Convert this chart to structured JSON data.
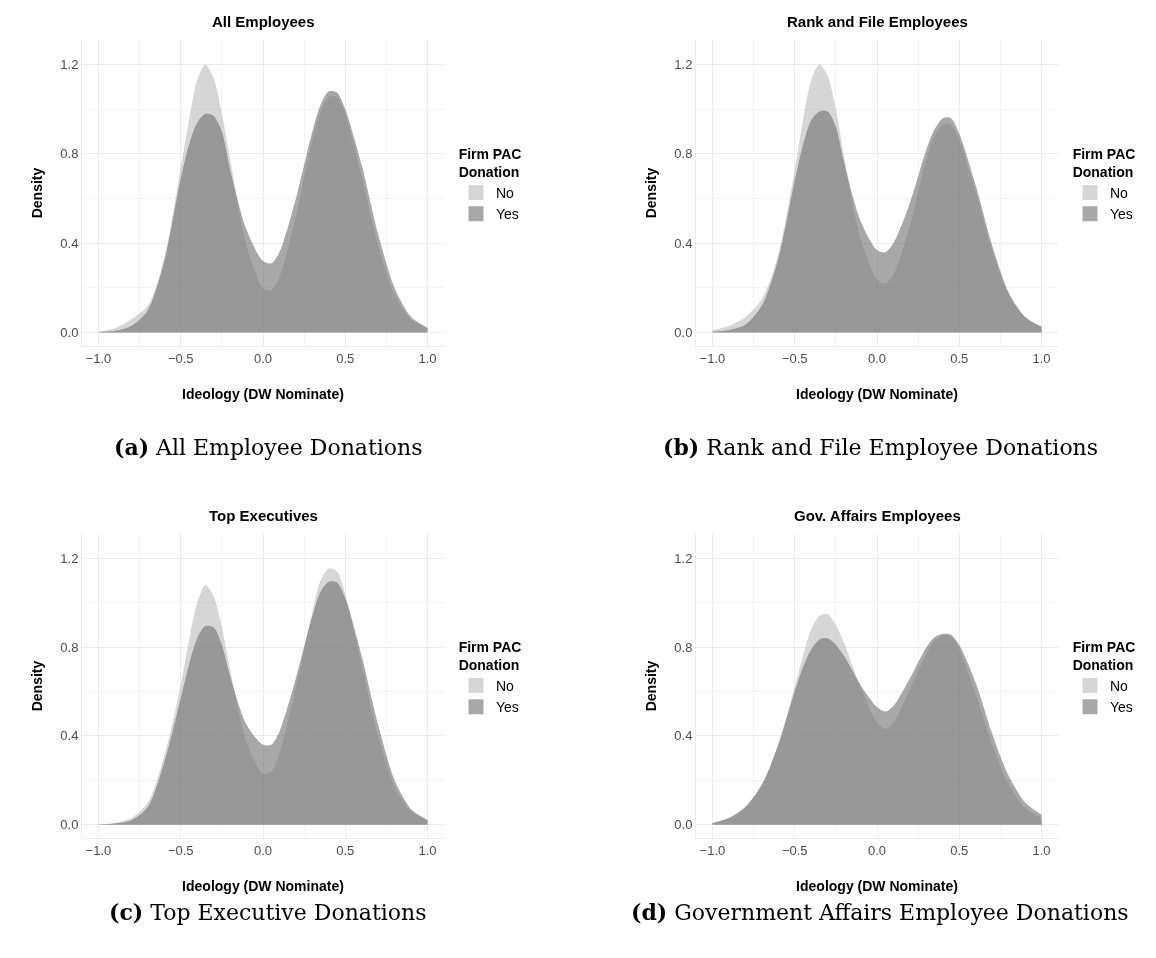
{
  "chart_data": [
    {
      "type": "area",
      "title": "All Employees",
      "xlabel": "Ideology (DW Nominate)",
      "ylabel": "Density",
      "legend_title": "Firm PAC Donation",
      "legend": "right",
      "grid": true,
      "xlim": [
        -1.1,
        1.1
      ],
      "ylim": [
        -0.06,
        1.31
      ],
      "xticks": [
        {
          "value": -1,
          "label": "−1.0"
        },
        {
          "value": -0.75,
          "label": null
        },
        {
          "value": -0.5,
          "label": "−0.5"
        },
        {
          "value": -0.25,
          "label": null
        },
        {
          "value": 0,
          "label": "0.0"
        },
        {
          "value": 0.25,
          "label": null
        },
        {
          "value": 0.5,
          "label": "0.5"
        },
        {
          "value": 0.75,
          "label": null
        },
        {
          "value": 1,
          "label": "1.0"
        }
      ],
      "yticks": [
        {
          "value": 0,
          "label": "0.0"
        },
        {
          "value": 0.2,
          "label": null
        },
        {
          "value": 0.4,
          "label": "0.4"
        },
        {
          "value": 0.6,
          "label": null
        },
        {
          "value": 0.8,
          "label": "0.8"
        },
        {
          "value": 1.0,
          "label": null
        },
        {
          "value": 1.2,
          "label": "1.2"
        }
      ],
      "x": [
        -1.0,
        -0.9,
        -0.8,
        -0.7,
        -0.6,
        -0.5,
        -0.45,
        -0.4,
        -0.35,
        -0.3,
        -0.25,
        -0.2,
        -0.1,
        0.0,
        0.05,
        0.1,
        0.2,
        0.3,
        0.35,
        0.4,
        0.45,
        0.5,
        0.6,
        0.7,
        0.8,
        0.9,
        1.0
      ],
      "series": [
        {
          "name": "No",
          "color": "#d6d6d6",
          "values": [
            0.005,
            0.02,
            0.06,
            0.12,
            0.33,
            0.74,
            0.95,
            1.13,
            1.2,
            1.14,
            0.98,
            0.78,
            0.39,
            0.2,
            0.19,
            0.25,
            0.52,
            0.86,
            0.99,
            1.055,
            1.055,
            0.98,
            0.7,
            0.39,
            0.17,
            0.06,
            0.02
          ]
        },
        {
          "name": "Yes",
          "color": "#a8a8a8",
          "values": [
            0.002,
            0.008,
            0.03,
            0.1,
            0.32,
            0.69,
            0.84,
            0.94,
            0.98,
            0.97,
            0.9,
            0.73,
            0.46,
            0.32,
            0.31,
            0.36,
            0.6,
            0.9,
            1.02,
            1.08,
            1.075,
            1.0,
            0.75,
            0.44,
            0.2,
            0.07,
            0.022
          ]
        }
      ],
      "annotations": [
        "(a) All Employee Donations"
      ]
    },
    {
      "type": "area",
      "title": "Rank and File Employees",
      "xlabel": "Ideology (DW Nominate)",
      "ylabel": "Density",
      "legend_title": "Firm PAC Donation",
      "legend": "right",
      "grid": true,
      "xlim": [
        -1.1,
        1.1
      ],
      "ylim": [
        -0.06,
        1.31
      ],
      "xticks": [
        {
          "value": -1,
          "label": "−1.0"
        },
        {
          "value": -0.75,
          "label": null
        },
        {
          "value": -0.5,
          "label": "−0.5"
        },
        {
          "value": -0.25,
          "label": null
        },
        {
          "value": 0,
          "label": "0.0"
        },
        {
          "value": 0.25,
          "label": null
        },
        {
          "value": 0.5,
          "label": "0.5"
        },
        {
          "value": 0.75,
          "label": null
        },
        {
          "value": 1,
          "label": "1.0"
        }
      ],
      "yticks": [
        {
          "value": 0,
          "label": "0.0"
        },
        {
          "value": 0.2,
          "label": null
        },
        {
          "value": 0.4,
          "label": "0.4"
        },
        {
          "value": 0.6,
          "label": null
        },
        {
          "value": 0.8,
          "label": "0.8"
        },
        {
          "value": 1.0,
          "label": null
        },
        {
          "value": 1.2,
          "label": "1.2"
        }
      ],
      "x": [
        -1.0,
        -0.9,
        -0.8,
        -0.7,
        -0.6,
        -0.5,
        -0.45,
        -0.4,
        -0.35,
        -0.3,
        -0.25,
        -0.2,
        -0.1,
        0.0,
        0.05,
        0.1,
        0.2,
        0.3,
        0.35,
        0.4,
        0.45,
        0.5,
        0.6,
        0.7,
        0.8,
        0.9,
        1.0
      ],
      "series": [
        {
          "name": "No",
          "color": "#d6d6d6",
          "values": [
            0.012,
            0.03,
            0.07,
            0.15,
            0.35,
            0.73,
            0.95,
            1.13,
            1.2,
            1.15,
            1.0,
            0.79,
            0.42,
            0.24,
            0.22,
            0.26,
            0.48,
            0.78,
            0.88,
            0.93,
            0.93,
            0.86,
            0.63,
            0.37,
            0.17,
            0.07,
            0.025
          ]
        },
        {
          "name": "Yes",
          "color": "#a8a8a8",
          "values": [
            0.004,
            0.012,
            0.035,
            0.12,
            0.33,
            0.68,
            0.84,
            0.95,
            0.99,
            0.99,
            0.92,
            0.76,
            0.5,
            0.37,
            0.36,
            0.4,
            0.58,
            0.82,
            0.91,
            0.96,
            0.96,
            0.89,
            0.66,
            0.39,
            0.18,
            0.07,
            0.027
          ]
        }
      ],
      "annotations": [
        "(b) Rank and File Employee Donations"
      ]
    },
    {
      "type": "area",
      "title": "Top Executives",
      "xlabel": "Ideology (DW Nominate)",
      "ylabel": "Density",
      "legend_title": "Firm PAC Donation",
      "legend": "right",
      "grid": true,
      "xlim": [
        -1.1,
        1.1
      ],
      "ylim": [
        -0.06,
        1.31
      ],
      "xticks": [
        {
          "value": -1,
          "label": "−1.0"
        },
        {
          "value": -0.75,
          "label": null
        },
        {
          "value": -0.5,
          "label": "−0.5"
        },
        {
          "value": -0.25,
          "label": null
        },
        {
          "value": 0,
          "label": "0.0"
        },
        {
          "value": 0.25,
          "label": null
        },
        {
          "value": 0.5,
          "label": "0.5"
        },
        {
          "value": 0.75,
          "label": null
        },
        {
          "value": 1,
          "label": "1.0"
        }
      ],
      "yticks": [
        {
          "value": 0,
          "label": "0.0"
        },
        {
          "value": 0.2,
          "label": null
        },
        {
          "value": 0.4,
          "label": "0.4"
        },
        {
          "value": 0.6,
          "label": null
        },
        {
          "value": 0.8,
          "label": "0.8"
        },
        {
          "value": 1.0,
          "label": null
        },
        {
          "value": 1.2,
          "label": "1.2"
        }
      ],
      "x": [
        -1.0,
        -0.9,
        -0.8,
        -0.7,
        -0.6,
        -0.5,
        -0.45,
        -0.4,
        -0.35,
        -0.3,
        -0.25,
        -0.2,
        -0.1,
        0.0,
        0.05,
        0.1,
        0.2,
        0.3,
        0.35,
        0.4,
        0.45,
        0.5,
        0.6,
        0.7,
        0.8,
        0.9,
        1.0
      ],
      "series": [
        {
          "name": "No",
          "color": "#d6d6d6",
          "values": [
            0.002,
            0.008,
            0.03,
            0.1,
            0.31,
            0.63,
            0.83,
            1.0,
            1.08,
            1.03,
            0.89,
            0.7,
            0.37,
            0.23,
            0.24,
            0.32,
            0.62,
            0.96,
            1.1,
            1.155,
            1.14,
            1.04,
            0.72,
            0.4,
            0.17,
            0.06,
            0.018
          ]
        },
        {
          "name": "Yes",
          "color": "#a8a8a8",
          "values": [
            0.001,
            0.005,
            0.02,
            0.08,
            0.28,
            0.57,
            0.72,
            0.84,
            0.895,
            0.89,
            0.81,
            0.67,
            0.45,
            0.36,
            0.36,
            0.42,
            0.66,
            0.94,
            1.05,
            1.095,
            1.09,
            1.02,
            0.76,
            0.45,
            0.2,
            0.07,
            0.022
          ]
        }
      ],
      "annotations": [
        "(c) Top Executive Donations"
      ]
    },
    {
      "type": "area",
      "title": "Gov. Affairs Employees",
      "xlabel": "Ideology (DW Nominate)",
      "ylabel": "Density",
      "legend_title": "Firm PAC Donation",
      "legend": "right",
      "grid": true,
      "xlim": [
        -1.1,
        1.1
      ],
      "ylim": [
        -0.06,
        1.31
      ],
      "xticks": [
        {
          "value": -1,
          "label": "−1.0"
        },
        {
          "value": -0.75,
          "label": null
        },
        {
          "value": -0.5,
          "label": "−0.5"
        },
        {
          "value": -0.25,
          "label": null
        },
        {
          "value": 0,
          "label": "0.0"
        },
        {
          "value": 0.25,
          "label": null
        },
        {
          "value": 0.5,
          "label": "0.5"
        },
        {
          "value": 0.75,
          "label": null
        },
        {
          "value": 1,
          "label": "1.0"
        }
      ],
      "yticks": [
        {
          "value": 0,
          "label": "0.0"
        },
        {
          "value": 0.2,
          "label": null
        },
        {
          "value": 0.4,
          "label": "0.4"
        },
        {
          "value": 0.6,
          "label": null
        },
        {
          "value": 0.8,
          "label": "0.8"
        },
        {
          "value": 1.0,
          "label": null
        },
        {
          "value": 1.2,
          "label": "1.2"
        }
      ],
      "x": [
        -1.0,
        -0.9,
        -0.8,
        -0.7,
        -0.6,
        -0.5,
        -0.45,
        -0.4,
        -0.35,
        -0.3,
        -0.25,
        -0.2,
        -0.1,
        0.0,
        0.05,
        0.1,
        0.2,
        0.3,
        0.35,
        0.4,
        0.45,
        0.5,
        0.6,
        0.7,
        0.8,
        0.9,
        1.0
      ],
      "series": [
        {
          "name": "No",
          "color": "#d6d6d6",
          "values": [
            0.008,
            0.03,
            0.08,
            0.18,
            0.36,
            0.62,
            0.76,
            0.88,
            0.94,
            0.95,
            0.9,
            0.82,
            0.62,
            0.46,
            0.43,
            0.46,
            0.61,
            0.77,
            0.83,
            0.855,
            0.85,
            0.79,
            0.59,
            0.36,
            0.18,
            0.075,
            0.03
          ]
        },
        {
          "name": "Yes",
          "color": "#a8a8a8",
          "values": [
            0.008,
            0.03,
            0.08,
            0.18,
            0.36,
            0.6,
            0.71,
            0.79,
            0.835,
            0.84,
            0.81,
            0.76,
            0.63,
            0.53,
            0.51,
            0.535,
            0.66,
            0.8,
            0.845,
            0.86,
            0.855,
            0.81,
            0.64,
            0.41,
            0.22,
            0.1,
            0.045
          ]
        }
      ],
      "annotations": [
        "(d) Government Affairs Employee Donations"
      ]
    }
  ]
}
